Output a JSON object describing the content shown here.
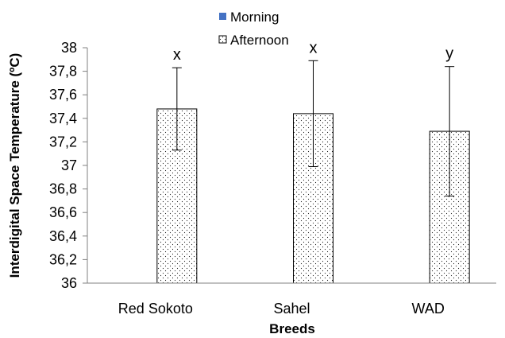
{
  "chart_data": {
    "type": "bar",
    "xlabel": "Breeds",
    "ylabel": "Interdigital Space Temperature (ºC)",
    "ylim": [
      36,
      38
    ],
    "yticks": [
      "36",
      "36,2",
      "36,4",
      "36,6",
      "36,8",
      "37",
      "37,2",
      "37,4",
      "37,6",
      "37,8",
      "38"
    ],
    "ytick_values": [
      36,
      36.2,
      36.4,
      36.6,
      36.8,
      37,
      37.2,
      37.4,
      37.6,
      37.8,
      38
    ],
    "categories": [
      "Red Sokoto",
      "Sahel",
      "WAD"
    ],
    "series": [
      {
        "name": "Morning",
        "color": "#4472c4",
        "pattern": "solid",
        "values": [
          null,
          null,
          null
        ]
      },
      {
        "name": "Afternoon",
        "color": "#ffffff",
        "pattern": "dotted",
        "values": [
          37.48,
          37.44,
          37.29
        ],
        "error_low": [
          37.13,
          36.99,
          36.74
        ],
        "error_high": [
          37.83,
          37.89,
          37.84
        ]
      }
    ],
    "annotations": [
      "x",
      "x",
      "y"
    ],
    "legend": "top-center",
    "grid": false
  }
}
